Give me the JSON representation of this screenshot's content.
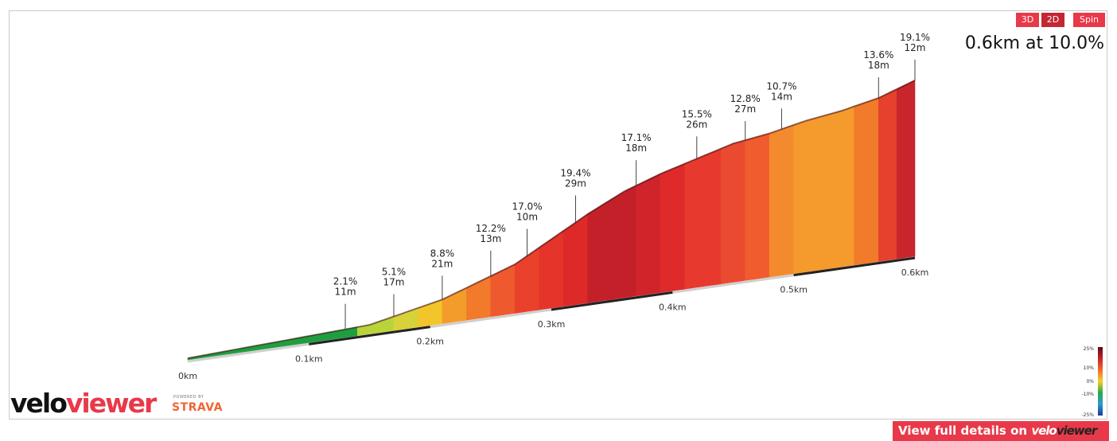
{
  "controls": {
    "btn_3d": "3D",
    "btn_2d": "2D",
    "btn_spin": "Spin"
  },
  "summary": "0.6km at 10.0%",
  "branding": {
    "logo_left": "velo",
    "logo_right": "viewer",
    "powered_by": "POWERED BY",
    "strava": "STRAVA"
  },
  "cta": {
    "text": "View full details on",
    "brand_left": "velo",
    "brand_right": "viewer"
  },
  "chart_data": {
    "type": "area",
    "title": "",
    "xlabel": "",
    "ylabel": "",
    "x_unit": "km",
    "x_ticks": [
      "0km",
      "0.1km",
      "0.2km",
      "0.3km",
      "0.4km",
      "0.5km",
      "0.6km"
    ],
    "xlim": [
      0,
      0.6
    ],
    "total_distance_km": 0.6,
    "average_gradient_pct": 10.0,
    "profile": [
      {
        "x": 0.0,
        "elev": 0
      },
      {
        "x": 0.05,
        "elev": 1
      },
      {
        "x": 0.1,
        "elev": 2
      },
      {
        "x": 0.15,
        "elev": 3
      },
      {
        "x": 0.18,
        "elev": 6
      },
      {
        "x": 0.21,
        "elev": 9
      },
      {
        "x": 0.24,
        "elev": 14
      },
      {
        "x": 0.27,
        "elev": 19
      },
      {
        "x": 0.3,
        "elev": 27
      },
      {
        "x": 0.33,
        "elev": 35
      },
      {
        "x": 0.36,
        "elev": 42
      },
      {
        "x": 0.39,
        "elev": 47
      },
      {
        "x": 0.42,
        "elev": 51
      },
      {
        "x": 0.45,
        "elev": 55
      },
      {
        "x": 0.48,
        "elev": 57
      },
      {
        "x": 0.51,
        "elev": 60
      },
      {
        "x": 0.54,
        "elev": 62
      },
      {
        "x": 0.57,
        "elev": 65
      },
      {
        "x": 0.6,
        "elev": 70
      }
    ],
    "segments": [
      {
        "x": 0.13,
        "gradient": "2.1%",
        "length": "11m"
      },
      {
        "x": 0.17,
        "gradient": "5.1%",
        "length": "17m"
      },
      {
        "x": 0.21,
        "gradient": "8.8%",
        "length": "21m"
      },
      {
        "x": 0.25,
        "gradient": "12.2%",
        "length": "13m"
      },
      {
        "x": 0.28,
        "gradient": "17.0%",
        "length": "10m"
      },
      {
        "x": 0.32,
        "gradient": "19.4%",
        "length": "29m"
      },
      {
        "x": 0.37,
        "gradient": "17.1%",
        "length": "18m"
      },
      {
        "x": 0.42,
        "gradient": "15.5%",
        "length": "26m"
      },
      {
        "x": 0.46,
        "gradient": "12.8%",
        "length": "27m"
      },
      {
        "x": 0.49,
        "gradient": "10.7%",
        "length": "14m"
      },
      {
        "x": 0.57,
        "gradient": "13.6%",
        "length": "18m"
      },
      {
        "x": 0.6,
        "gradient": "19.1%",
        "length": "12m"
      }
    ],
    "bands": [
      {
        "x0": 0.0,
        "x1": 0.14,
        "color": "#1f9e3f"
      },
      {
        "x0": 0.14,
        "x1": 0.17,
        "color": "#b9d43a"
      },
      {
        "x0": 0.17,
        "x1": 0.19,
        "color": "#d8d23a"
      },
      {
        "x0": 0.19,
        "x1": 0.21,
        "color": "#f2c62a"
      },
      {
        "x0": 0.21,
        "x1": 0.23,
        "color": "#f39c2c"
      },
      {
        "x0": 0.23,
        "x1": 0.25,
        "color": "#f17a2b"
      },
      {
        "x0": 0.25,
        "x1": 0.27,
        "color": "#ee5a2d"
      },
      {
        "x0": 0.27,
        "x1": 0.29,
        "color": "#e9412c"
      },
      {
        "x0": 0.29,
        "x1": 0.31,
        "color": "#e5342a"
      },
      {
        "x0": 0.31,
        "x1": 0.33,
        "color": "#dd2a29"
      },
      {
        "x0": 0.33,
        "x1": 0.37,
        "color": "#c4202a"
      },
      {
        "x0": 0.37,
        "x1": 0.39,
        "color": "#d0242b"
      },
      {
        "x0": 0.39,
        "x1": 0.41,
        "color": "#de2a2a"
      },
      {
        "x0": 0.41,
        "x1": 0.44,
        "color": "#e8392e"
      },
      {
        "x0": 0.44,
        "x1": 0.46,
        "color": "#ea4a30"
      },
      {
        "x0": 0.46,
        "x1": 0.48,
        "color": "#f05c2d"
      },
      {
        "x0": 0.48,
        "x1": 0.5,
        "color": "#f48a2e"
      },
      {
        "x0": 0.5,
        "x1": 0.55,
        "color": "#f59a2c"
      },
      {
        "x0": 0.55,
        "x1": 0.57,
        "color": "#f17a2b"
      },
      {
        "x0": 0.57,
        "x1": 0.585,
        "color": "#e5412c"
      },
      {
        "x0": 0.585,
        "x1": 0.6,
        "color": "#c8252c"
      }
    ],
    "legend": {
      "ticks": [
        "25%",
        "10%",
        "0%",
        "-10%",
        "-25%"
      ],
      "colors": [
        "#5a0a18",
        "#c8202c",
        "#f06a2a",
        "#f5d02a",
        "#2aa84a",
        "#2a9ad4",
        "#1a3a9a"
      ]
    }
  }
}
